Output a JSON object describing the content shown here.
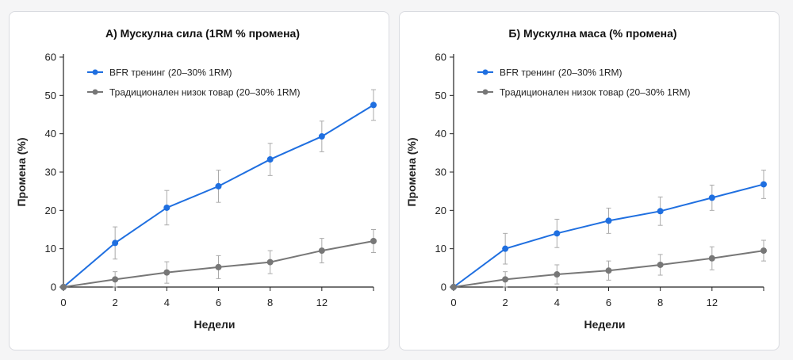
{
  "colors": {
    "blue": "#1f6fe0",
    "gray": "#777777",
    "axis": "#222222",
    "errorbar": "#aaaaaa"
  },
  "chart_data": [
    {
      "type": "line",
      "title": "А) Мускулна сила (1RM % промена)",
      "xlabel": "Недели",
      "ylabel": "Промена (%)",
      "x_ticks": [
        "0",
        "2",
        "4",
        "6",
        "8",
        "12"
      ],
      "x": [
        "0",
        "2",
        "4",
        "6",
        "8",
        "12",
        "14"
      ],
      "ylim": [
        0,
        60
      ],
      "y_ticks": [
        0,
        10,
        20,
        30,
        40,
        50,
        60
      ],
      "legend_position": "top-left",
      "series": [
        {
          "name": "BFR тренинг (20–30% 1RM)",
          "color": "#1f6fe0",
          "values": [
            0,
            11.5,
            20.7,
            26.3,
            33.3,
            39.3,
            47.5
          ],
          "errors": [
            0,
            4.2,
            4.5,
            4.2,
            4.2,
            4.0,
            4.0
          ]
        },
        {
          "name": "Традиционален низок товар (20–30% 1RM)",
          "color": "#777777",
          "values": [
            0,
            2.0,
            3.8,
            5.2,
            6.5,
            9.5,
            12.0
          ],
          "errors": [
            0,
            2.0,
            2.8,
            3.0,
            3.0,
            3.2,
            3.0
          ]
        }
      ]
    },
    {
      "type": "line",
      "title": "Б) Мускулна маса (% промена)",
      "xlabel": "Недели",
      "ylabel": "Промена (%)",
      "x_ticks": [
        "0",
        "2",
        "4",
        "6",
        "8",
        "12"
      ],
      "x": [
        "0",
        "2",
        "4",
        "6",
        "8",
        "12",
        "14"
      ],
      "ylim": [
        0,
        60
      ],
      "y_ticks": [
        0,
        10,
        20,
        30,
        40,
        50,
        60
      ],
      "legend_position": "top-left",
      "series": [
        {
          "name": "BFR тренинг (20–30% 1RM)",
          "color": "#1f6fe0",
          "values": [
            0,
            10.0,
            14.0,
            17.3,
            19.8,
            23.3,
            26.8
          ],
          "errors": [
            0,
            4.0,
            3.7,
            3.3,
            3.7,
            3.3,
            3.7
          ]
        },
        {
          "name": "Традиционален низок товар (20–30% 1RM)",
          "color": "#777777",
          "values": [
            0,
            2.0,
            3.3,
            4.3,
            5.8,
            7.5,
            9.5
          ],
          "errors": [
            0,
            2.0,
            2.5,
            2.5,
            2.7,
            3.0,
            2.7
          ]
        }
      ]
    }
  ]
}
